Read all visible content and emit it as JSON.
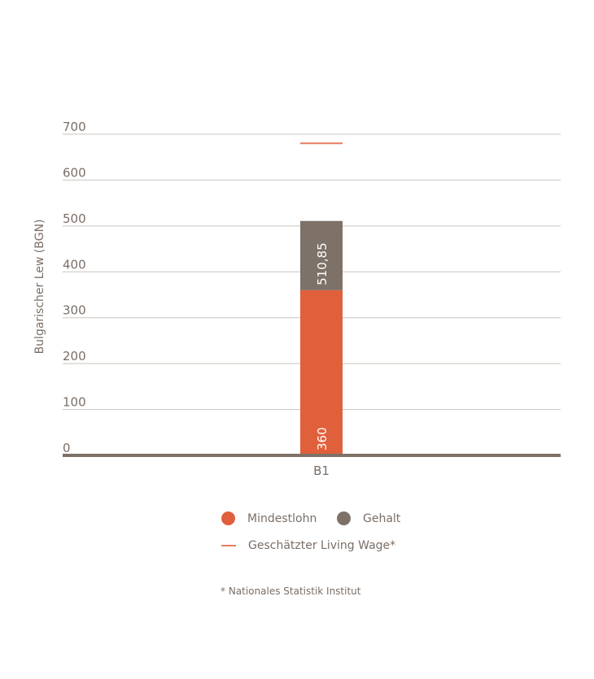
{
  "chart_data": {
    "type": "bar",
    "stacked": true,
    "ylabel": "Bulgarischer Lew (BGN)",
    "ylim": [
      0,
      700
    ],
    "yticks": [
      0,
      100,
      200,
      300,
      400,
      500,
      600,
      700
    ],
    "categories": [
      "B1"
    ],
    "series": [
      {
        "name": "Mindestlohn",
        "values": [
          360
        ],
        "labels": [
          "360"
        ],
        "color": "#e0603b"
      },
      {
        "name": "Gehalt",
        "values": [
          150.85
        ],
        "labels": [
          "510,85"
        ],
        "color": "#7d7168"
      }
    ],
    "reference_lines": [
      {
        "name": "Geschätzter Living Wage*",
        "value": 680,
        "color": "#e87c61"
      }
    ],
    "grid": true,
    "legend_position": "bottom"
  },
  "legend": {
    "mindestlohn": "Mindestlohn",
    "gehalt": "Gehalt",
    "living_wage": "Geschätzter Living Wage*"
  },
  "footnote": "* Nationales Statistik Institut"
}
